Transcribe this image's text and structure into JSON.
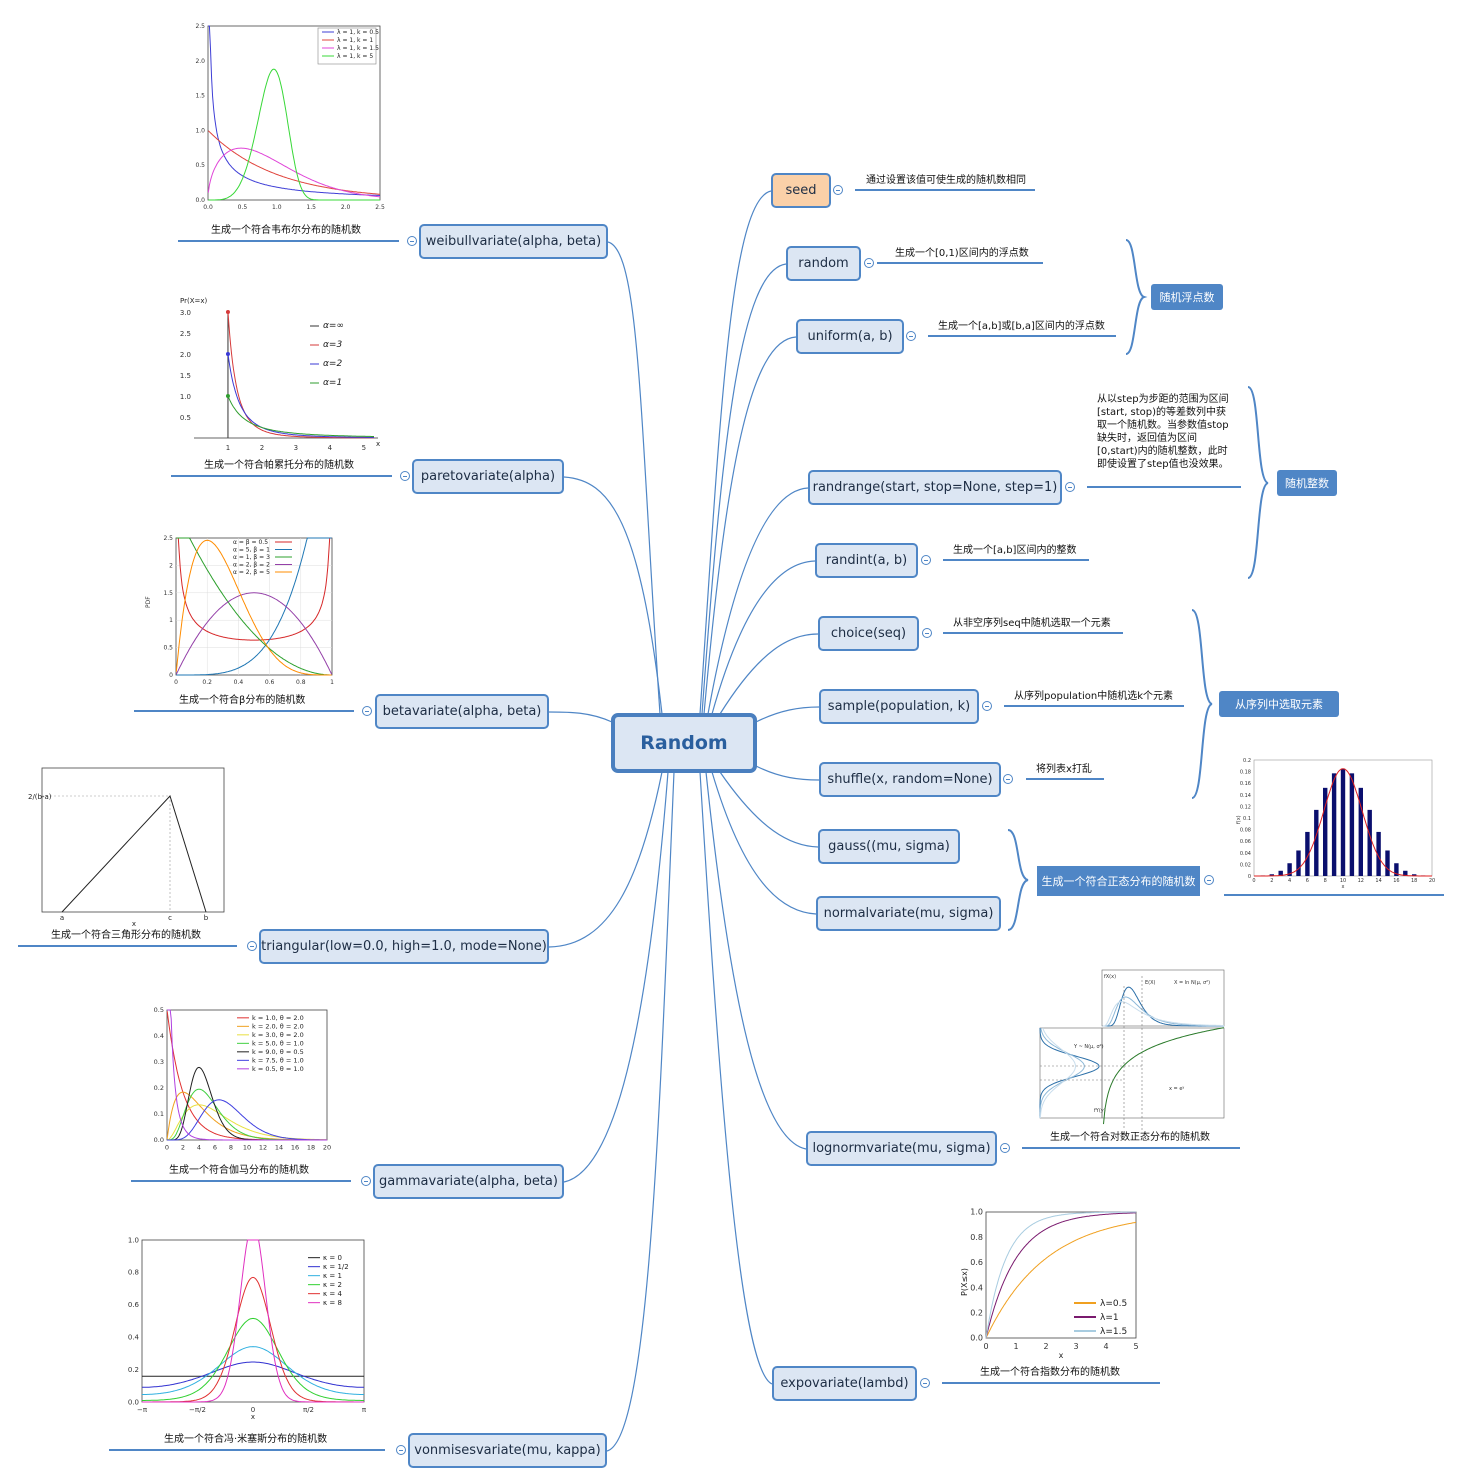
{
  "root": {
    "label": "Random"
  },
  "right_nodes": [
    {
      "id": "seed",
      "label": "seed",
      "desc": "通过设置该值可使生成的随机数相同"
    },
    {
      "id": "random",
      "label": "random",
      "desc": "生成一个[0,1)区间内的浮点数"
    },
    {
      "id": "uniform",
      "label": "uniform(a, b)",
      "desc": "生成一个[a,b]或[b,a]区间内的浮点数"
    },
    {
      "id": "randrange",
      "label": "randrange(start, stop=None, step=1)",
      "desc": "从以step为步距的范围为区间[start, stop)的等差数列中获取一个随机数。当参数值stop缺失时，返回值为区间[0,start)内的随机整数，此时即使设置了step值也没效果。"
    },
    {
      "id": "randint",
      "label": "randint(a, b)",
      "desc": "生成一个[a,b]区间内的整数"
    },
    {
      "id": "choice",
      "label": "choice(seq)",
      "desc": "从非空序列seq中随机选取一个元素"
    },
    {
      "id": "sample",
      "label": "sample(population, k)",
      "desc": "从序列population中随机选k个元素"
    },
    {
      "id": "shuffle",
      "label": "shuffle(x, random=None)",
      "desc": "将列表x打乱"
    },
    {
      "id": "gauss",
      "label": "gauss((mu, sigma)"
    },
    {
      "id": "normalvariate",
      "label": "normalvariate(mu, sigma)"
    },
    {
      "id": "lognormvariate",
      "label": "lognormvariate(mu, sigma)",
      "desc": "生成一个符合对数正态分布的随机数"
    },
    {
      "id": "expovariate",
      "label": "expovariate(lambd)",
      "desc": "生成一个符合指数分布的随机数"
    }
  ],
  "left_nodes": [
    {
      "id": "weibull",
      "label": "weibullvariate(alpha, beta)",
      "desc": "生成一个符合韦布尔分布的随机数"
    },
    {
      "id": "pareto",
      "label": "paretovariate(alpha)",
      "desc": "生成一个符合帕累托分布的随机数"
    },
    {
      "id": "beta",
      "label": "betavariate(alpha, beta)",
      "desc": "生成一个符合β分布的随机数"
    },
    {
      "id": "triangular",
      "label": "triangular(low=0.0, high=1.0, mode=None)",
      "desc": "生成一个符合三角形分布的随机数"
    },
    {
      "id": "gamma",
      "label": "gammavariate(alpha, beta)",
      "desc": "生成一个符合伽马分布的随机数"
    },
    {
      "id": "vonmises",
      "label": "vonmisesvariate(mu, kappa)",
      "desc": "生成一个符合冯·米塞斯分布的随机数"
    }
  ],
  "summaries": {
    "float": "随机浮点数",
    "int": "随机整数",
    "seq": "从序列中选取元素",
    "normal": "生成一个符合正态分布的随机数"
  },
  "colors": {
    "node_border": "#4f86c6",
    "node_fill": "#dce6f3",
    "seed_fill": "#fad0a8",
    "summary": "#4f86c6",
    "link": "#4f86c6"
  },
  "icons": [
    "collapse-icon",
    "brace-icon"
  ],
  "chart_data": [
    {
      "type": "line",
      "id": "weibull-chart",
      "ylim": [
        0,
        2.5
      ],
      "xlim": [
        0,
        2.5
      ],
      "x_ticks": [
        "0.0",
        "0.5",
        "1.0",
        "1.5",
        "2.0",
        "2.5"
      ],
      "y_ticks": [
        "0.0",
        "0.5",
        "1.0",
        "1.5",
        "2.0",
        "2.5"
      ],
      "legend_position": "top-right",
      "series": [
        {
          "name": "λ = 1, k = 0.5",
          "color": "#3f3fd6"
        },
        {
          "name": "λ = 1, k = 1",
          "color": "#e0443c"
        },
        {
          "name": "λ = 1, k = 1.5",
          "color": "#e045d8"
        },
        {
          "name": "λ = 1, k = 5",
          "color": "#38d838"
        }
      ]
    },
    {
      "type": "line",
      "id": "pareto-chart",
      "ylabel": "Pr(X=x)",
      "xlabel": "x",
      "ylim": [
        0,
        3
      ],
      "xlim": [
        0,
        5
      ],
      "x_ticks": [
        "1",
        "2",
        "3",
        "4",
        "5"
      ],
      "y_ticks": [
        "0.5",
        "1.0",
        "1.5",
        "2.0",
        "2.5",
        "3.0"
      ],
      "legend_position": "top-right",
      "series": [
        {
          "name": "α=∞",
          "color": "#333333"
        },
        {
          "name": "α=3",
          "color": "#d63a3a"
        },
        {
          "name": "α=2",
          "color": "#3a3ad6"
        },
        {
          "name": "α=1",
          "color": "#2f9e2f"
        }
      ]
    },
    {
      "type": "line",
      "id": "beta-chart",
      "ylabel": "PDF",
      "ylim": [
        0,
        2.5
      ],
      "xlim": [
        0,
        1
      ],
      "x_ticks": [
        "0",
        "0.2",
        "0.4",
        "0.6",
        "0.8",
        "1"
      ],
      "y_ticks": [
        "0",
        "0.5",
        "1",
        "1.5",
        "2",
        "2.5"
      ],
      "legend_position": "top",
      "series": [
        {
          "name": "α = β = 0.5",
          "color": "#d62728"
        },
        {
          "name": "α = 5, β = 1",
          "color": "#1f77b4"
        },
        {
          "name": "α = 1, β = 3",
          "color": "#2ca02c"
        },
        {
          "name": "α = 2, β = 2",
          "color": "#9440a8"
        },
        {
          "name": "α = 2, β = 5",
          "color": "#ff8c00"
        }
      ]
    },
    {
      "type": "line",
      "id": "triangular-chart",
      "x_ticks": [
        "a",
        "c",
        "b"
      ],
      "xlabel": "x",
      "y_tick": "2/(b-a)"
    },
    {
      "type": "line",
      "id": "gamma-chart",
      "ylim": [
        0,
        0.5
      ],
      "xlim": [
        0,
        20
      ],
      "x_ticks": [
        "0",
        "2",
        "4",
        "6",
        "8",
        "10",
        "12",
        "14",
        "16",
        "18",
        "20"
      ],
      "y_ticks": [
        "0.0",
        "0.1",
        "0.2",
        "0.3",
        "0.4",
        "0.5"
      ],
      "legend_position": "top-right",
      "series": [
        {
          "name": "k = 1.0, θ = 2.0",
          "color": "#e03030"
        },
        {
          "name": "k = 2.0, θ = 2.0",
          "color": "#f0a020"
        },
        {
          "name": "k = 3.0, θ = 2.0",
          "color": "#e8e040"
        },
        {
          "name": "k = 5.0, θ = 1.0",
          "color": "#40d040"
        },
        {
          "name": "k = 9.0, θ = 0.5",
          "color": "#202020"
        },
        {
          "name": "k = 7.5, θ = 1.0",
          "color": "#4040e0"
        },
        {
          "name": "k = 0.5, θ = 1.0",
          "color": "#b040e0"
        }
      ]
    },
    {
      "type": "line",
      "id": "vonmises-chart",
      "xlabel": "x",
      "ylim": [
        0,
        1
      ],
      "x_ticks": [
        "−π",
        "−π/2",
        "0",
        "π/2",
        "π"
      ],
      "y_ticks": [
        "0.0",
        "0.2",
        "0.4",
        "0.6",
        "0.8",
        "1.0"
      ],
      "legend_position": "top-right",
      "series": [
        {
          "name": "κ = 0",
          "color": "#222222"
        },
        {
          "name": "κ = 1/2",
          "color": "#3030d0"
        },
        {
          "name": "κ = 1",
          "color": "#30b0e0"
        },
        {
          "name": "κ = 2",
          "color": "#30d030"
        },
        {
          "name": "κ = 4",
          "color": "#e03030"
        },
        {
          "name": "κ = 8",
          "color": "#e030c0"
        }
      ]
    },
    {
      "type": "bar",
      "id": "normal-chart",
      "ylabel": "f(x)",
      "xlabel": "x",
      "ylim": [
        0,
        0.2
      ],
      "x_ticks": [
        "0",
        "2",
        "4",
        "6",
        "8",
        "10",
        "12",
        "14",
        "16",
        "18",
        "20"
      ],
      "y_ticks": [
        "0",
        "0.02",
        "0.04",
        "0.06",
        "0.08",
        "0.1",
        "0.12",
        "0.14",
        "0.16",
        "0.18",
        "0.2"
      ],
      "values": [
        0.001,
        0.003,
        0.009,
        0.022,
        0.044,
        0.076,
        0.114,
        0.152,
        0.177,
        0.185,
        0.177,
        0.152,
        0.114,
        0.076,
        0.044,
        0.022,
        0.009,
        0.003,
        0.001
      ]
    },
    {
      "type": "line",
      "id": "lognormal-chart",
      "annotations": [
        "fX(x)",
        "E(X)",
        "X = ln N(μ, σ²)",
        "Y ~ N(μ, σ²)",
        "fY(y)",
        "x = eʸ"
      ]
    },
    {
      "type": "line",
      "id": "expo-chart",
      "xlabel": "x",
      "ylabel": "P(X≤x)",
      "ylim": [
        0,
        1
      ],
      "xlim": [
        0,
        5
      ],
      "x_ticks": [
        "0",
        "1",
        "2",
        "3",
        "4",
        "5"
      ],
      "y_ticks": [
        "0.0",
        "0.2",
        "0.4",
        "0.6",
        "0.8",
        "1.0"
      ],
      "legend_position": "bottom-right",
      "series": [
        {
          "name": "λ=0.5",
          "color": "#f0a020",
          "lambda": 0.5
        },
        {
          "name": "λ=1",
          "color": "#7a1a6e",
          "lambda": 1
        },
        {
          "name": "λ=1.5",
          "color": "#a8cce0",
          "lambda": 1.5
        }
      ]
    }
  ]
}
